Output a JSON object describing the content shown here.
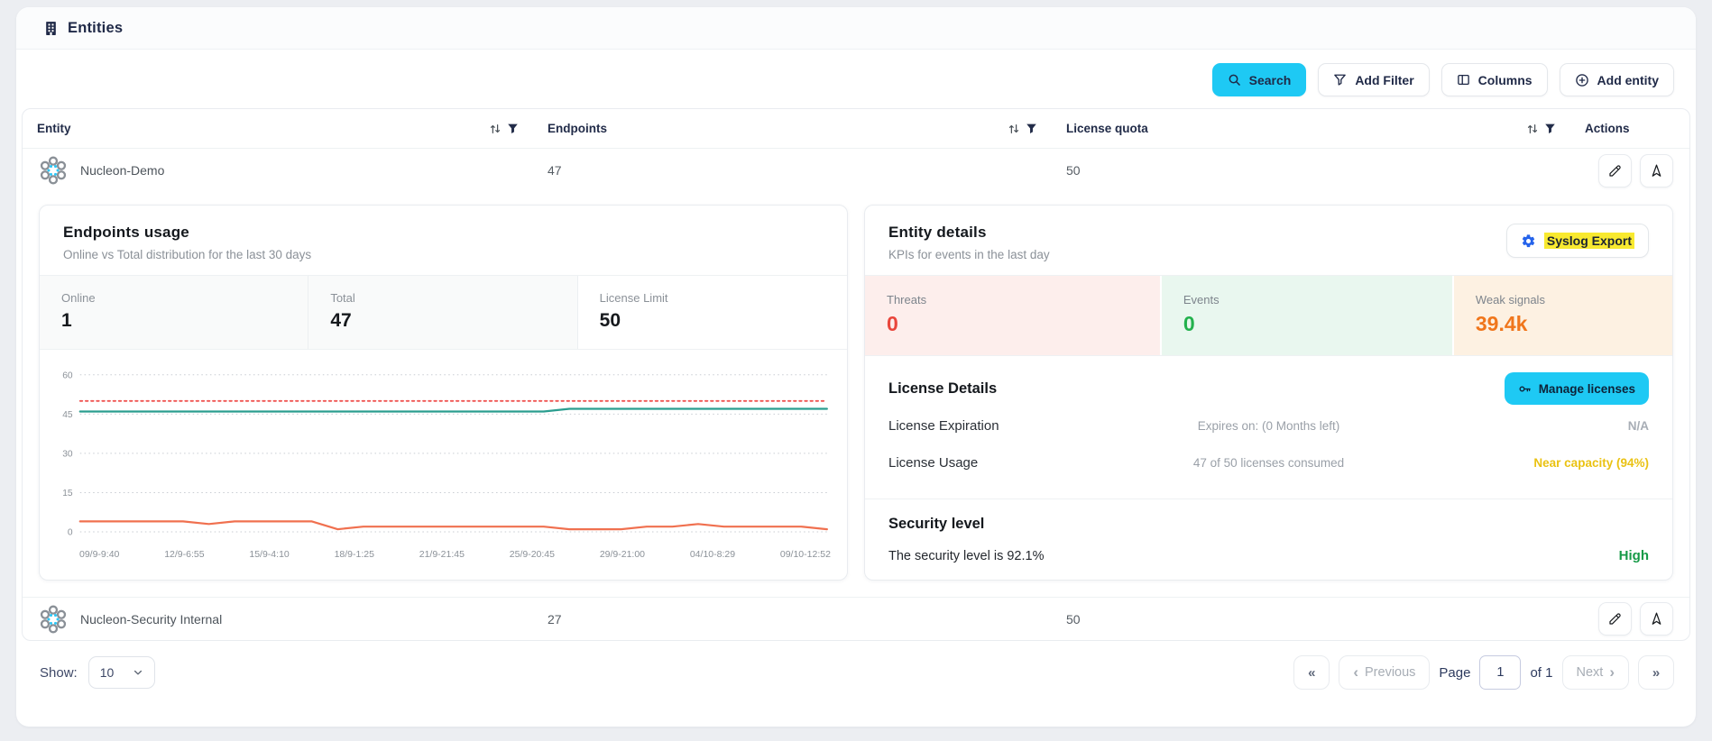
{
  "header": {
    "title": "Entities"
  },
  "toolbar": {
    "search_label": "Search",
    "add_filter_label": "Add Filter",
    "columns_label": "Columns",
    "add_entity_label": "Add entity"
  },
  "table": {
    "columns": {
      "entity": "Entity",
      "endpoints": "Endpoints",
      "license_quota": "License quota",
      "actions": "Actions"
    },
    "rows": [
      {
        "name": "Nucleon-Demo",
        "endpoints": "47",
        "license_quota": "50"
      },
      {
        "name": "Nucleon-Security Internal",
        "endpoints": "27",
        "license_quota": "50"
      }
    ]
  },
  "endpoints_usage": {
    "title": "Endpoints usage",
    "subtitle": "Online vs Total distribution for the last 30 days",
    "stats": [
      {
        "label": "Online",
        "value": "1"
      },
      {
        "label": "Total",
        "value": "47"
      },
      {
        "label": "License Limit",
        "value": "50"
      }
    ]
  },
  "chart_data": {
    "type": "line",
    "title": "Endpoints usage - Online vs Total distribution for the last 30 days",
    "x_tick_labels": [
      "09/9-9:40",
      "12/9-6:55",
      "15/9-4:10",
      "18/9-1:25",
      "21/9-21:45",
      "25/9-20:45",
      "29/9-21:00",
      "04/10-8:29",
      "09/10-12:52"
    ],
    "y_ticks": [
      0,
      15,
      30,
      45,
      60
    ],
    "ylim": [
      0,
      62
    ],
    "grid": "horizontal-dotted",
    "legend": "none",
    "series": [
      {
        "name": "License Limit",
        "color": "#ef5350",
        "style": "dotted",
        "values": [
          50,
          50,
          50,
          50,
          50,
          50,
          50,
          50,
          50,
          50,
          50,
          50,
          50,
          50,
          50,
          50,
          50,
          50,
          50,
          50,
          50,
          50,
          50,
          50,
          50,
          50,
          50,
          50,
          50,
          50
        ]
      },
      {
        "name": "Total",
        "color": "#2a9d8f",
        "style": "solid",
        "values": [
          46,
          46,
          46,
          46,
          46,
          46,
          46,
          46,
          46,
          46,
          46,
          46,
          46,
          46,
          46,
          46,
          46,
          46,
          46,
          47,
          47,
          47,
          47,
          47,
          47,
          47,
          47,
          47,
          47,
          47
        ]
      },
      {
        "name": "Online",
        "color": "#f0704f",
        "style": "solid",
        "values": [
          4,
          4,
          4,
          4,
          4,
          3,
          4,
          4,
          4,
          4,
          1,
          2,
          2,
          2,
          2,
          2,
          2,
          2,
          2,
          1,
          1,
          1,
          2,
          2,
          3,
          2,
          2,
          2,
          2,
          1
        ]
      }
    ]
  },
  "entity_details": {
    "title": "Entity details",
    "subtitle": "KPIs for events in the last day",
    "syslog_export_label": "Syslog Export",
    "kpis": [
      {
        "label": "Threats",
        "value": "0",
        "color": "#e9463c",
        "bg": "#fdeeec"
      },
      {
        "label": "Events",
        "value": "0",
        "color": "#23b14d",
        "bg": "#e9f7ef"
      },
      {
        "label": "Weak signals",
        "value": "39.4k",
        "color": "#f0761c",
        "bg": "#fdf1e2"
      }
    ],
    "license": {
      "title": "License Details",
      "manage_label": "Manage licenses",
      "expiration": {
        "label": "License Expiration",
        "detail": "Expires on: (0 Months left)",
        "value": "N/A"
      },
      "usage": {
        "label": "License Usage",
        "detail": "47 of 50 licenses consumed",
        "value": "Near capacity (94%)"
      }
    },
    "security": {
      "title": "Security level",
      "text": "The security level is 92.1%",
      "badge": "High",
      "badge_color": "#169a47"
    }
  },
  "pagination": {
    "show_label": "Show:",
    "page_size": "10",
    "first_label": "«",
    "prev_chevron": "‹",
    "prev_label": "Previous",
    "page_label": "Page",
    "page_value": "1",
    "of_label": "of 1",
    "next_label": "Next",
    "next_chevron": "›",
    "last_label": "»"
  },
  "colors": {
    "accent_cyan": "#1ec9f4",
    "navy": "#1f2947",
    "highlight_yellow": "#f8e92f",
    "warn_gold": "#eac213",
    "ok_green": "#169a47"
  }
}
